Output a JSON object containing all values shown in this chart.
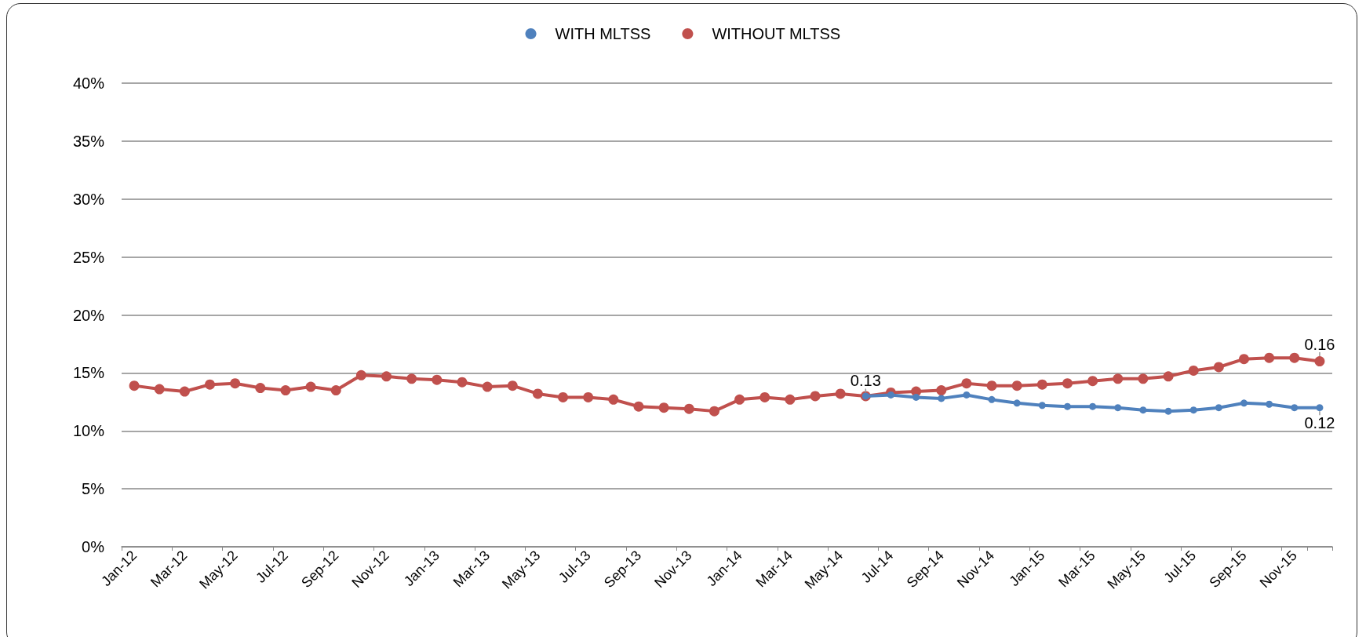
{
  "chart_data": {
    "type": "line",
    "categories": [
      "Jan-12",
      null,
      "Mar-12",
      null,
      "May-12",
      null,
      "Jul-12",
      null,
      "Sep-12",
      null,
      "Nov-12",
      null,
      "Jan-13",
      null,
      "Mar-13",
      null,
      "May-13",
      null,
      "Jul-13",
      null,
      "Sep-13",
      null,
      "Nov-13",
      null,
      "Jan-14",
      null,
      "Mar-14",
      null,
      "May-14",
      null,
      "Jul-14",
      null,
      "Sep-14",
      null,
      "Nov-14",
      null,
      "Jan-15",
      null,
      "Mar-15",
      null,
      "May-15",
      null,
      "Jul-15",
      null,
      "Sep-15",
      null,
      "Nov-15",
      null
    ],
    "series": [
      {
        "name": "WITH MLTSS",
        "color": "#4f81bd",
        "values": [
          null,
          null,
          null,
          null,
          null,
          null,
          null,
          null,
          null,
          null,
          null,
          null,
          null,
          null,
          null,
          null,
          null,
          null,
          null,
          null,
          null,
          null,
          null,
          null,
          null,
          null,
          null,
          null,
          null,
          0.13,
          0.131,
          0.129,
          0.128,
          0.131,
          0.127,
          0.124,
          0.122,
          0.121,
          0.121,
          0.12,
          0.118,
          0.117,
          0.118,
          0.12,
          0.124,
          0.123,
          0.12,
          0.12
        ],
        "value_labels": [
          null,
          null,
          null,
          null,
          null,
          null,
          null,
          null,
          null,
          null,
          null,
          null,
          null,
          null,
          null,
          null,
          null,
          null,
          null,
          null,
          null,
          null,
          null,
          null,
          null,
          null,
          null,
          null,
          null,
          "0.13",
          null,
          null,
          null,
          null,
          null,
          null,
          null,
          null,
          null,
          null,
          null,
          null,
          null,
          null,
          null,
          null,
          null,
          "0.12"
        ]
      },
      {
        "name": "WITHOUT MLTSS",
        "color": "#c0504d",
        "values": [
          0.139,
          0.136,
          0.134,
          0.14,
          0.141,
          0.137,
          0.135,
          0.138,
          0.135,
          0.148,
          0.147,
          0.145,
          0.144,
          0.142,
          0.138,
          0.139,
          0.132,
          0.129,
          0.129,
          0.127,
          0.121,
          0.12,
          0.119,
          0.117,
          0.127,
          0.129,
          0.127,
          0.13,
          0.132,
          0.13,
          0.133,
          0.134,
          0.135,
          0.141,
          0.139,
          0.139,
          0.14,
          0.141,
          0.143,
          0.145,
          0.145,
          0.147,
          0.152,
          0.155,
          0.162,
          0.163,
          0.163,
          0.16
        ],
        "value_labels": [
          null,
          null,
          null,
          null,
          null,
          null,
          null,
          null,
          null,
          null,
          null,
          null,
          null,
          null,
          null,
          null,
          null,
          null,
          null,
          null,
          null,
          null,
          null,
          null,
          null,
          null,
          null,
          null,
          null,
          null,
          null,
          null,
          null,
          null,
          null,
          null,
          null,
          null,
          null,
          null,
          null,
          null,
          null,
          null,
          null,
          null,
          null,
          "0.16"
        ]
      }
    ],
    "ylim": [
      0,
      0.4
    ],
    "yticks": [
      {
        "value": 0,
        "label": "0%"
      },
      {
        "value": 0.05,
        "label": "5%"
      },
      {
        "value": 0.1,
        "label": "10%"
      },
      {
        "value": 0.15,
        "label": "15%"
      },
      {
        "value": 0.2,
        "label": "20%"
      },
      {
        "value": 0.25,
        "label": "25%"
      },
      {
        "value": 0.3,
        "label": "30%"
      },
      {
        "value": 0.35,
        "label": "35%"
      },
      {
        "value": 0.4,
        "label": "40%"
      }
    ],
    "grid": "y",
    "legend": "top",
    "marker": "circle",
    "line_style": "solid"
  }
}
